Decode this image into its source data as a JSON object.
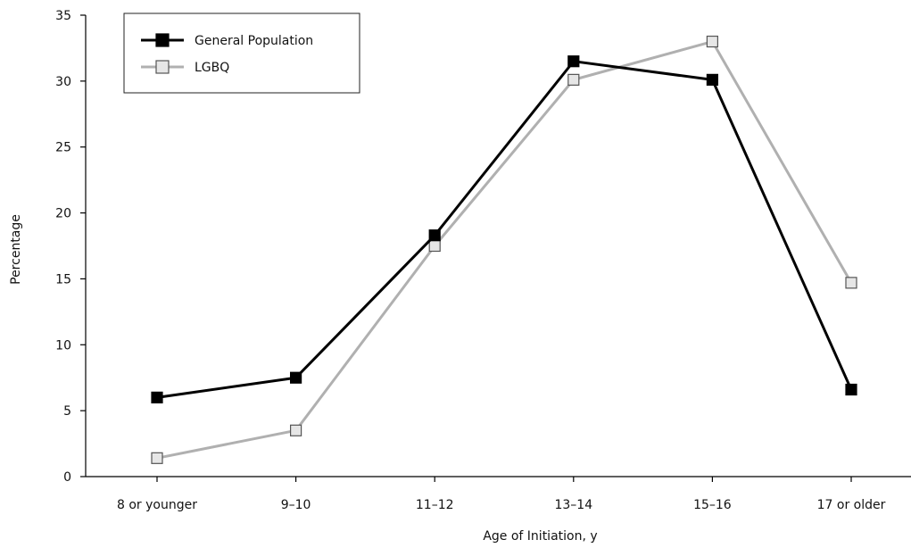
{
  "chart_data": {
    "type": "line",
    "title": "",
    "xlabel": "Age of Initiation, y",
    "ylabel": "Percentage",
    "categories": [
      "8 or younger",
      "9–10",
      "11–12",
      "13–14",
      "15–16",
      "17 or older"
    ],
    "ylim": [
      0,
      35
    ],
    "yticks": [
      0,
      5,
      10,
      15,
      20,
      25,
      30,
      35
    ],
    "grid": false,
    "legend": "top-left",
    "series": [
      {
        "name": "General Population",
        "values": [
          6.0,
          7.5,
          18.3,
          31.5,
          30.1,
          6.6
        ],
        "line_color": "#000000",
        "marker_fill": "#000000",
        "marker_stroke": "#000000"
      },
      {
        "name": "LGBQ",
        "values": [
          1.4,
          3.5,
          17.5,
          30.1,
          33.0,
          14.7
        ],
        "line_color": "#b0b0b0",
        "marker_fill": "#e6e6e6",
        "marker_stroke": "#555555"
      }
    ]
  }
}
